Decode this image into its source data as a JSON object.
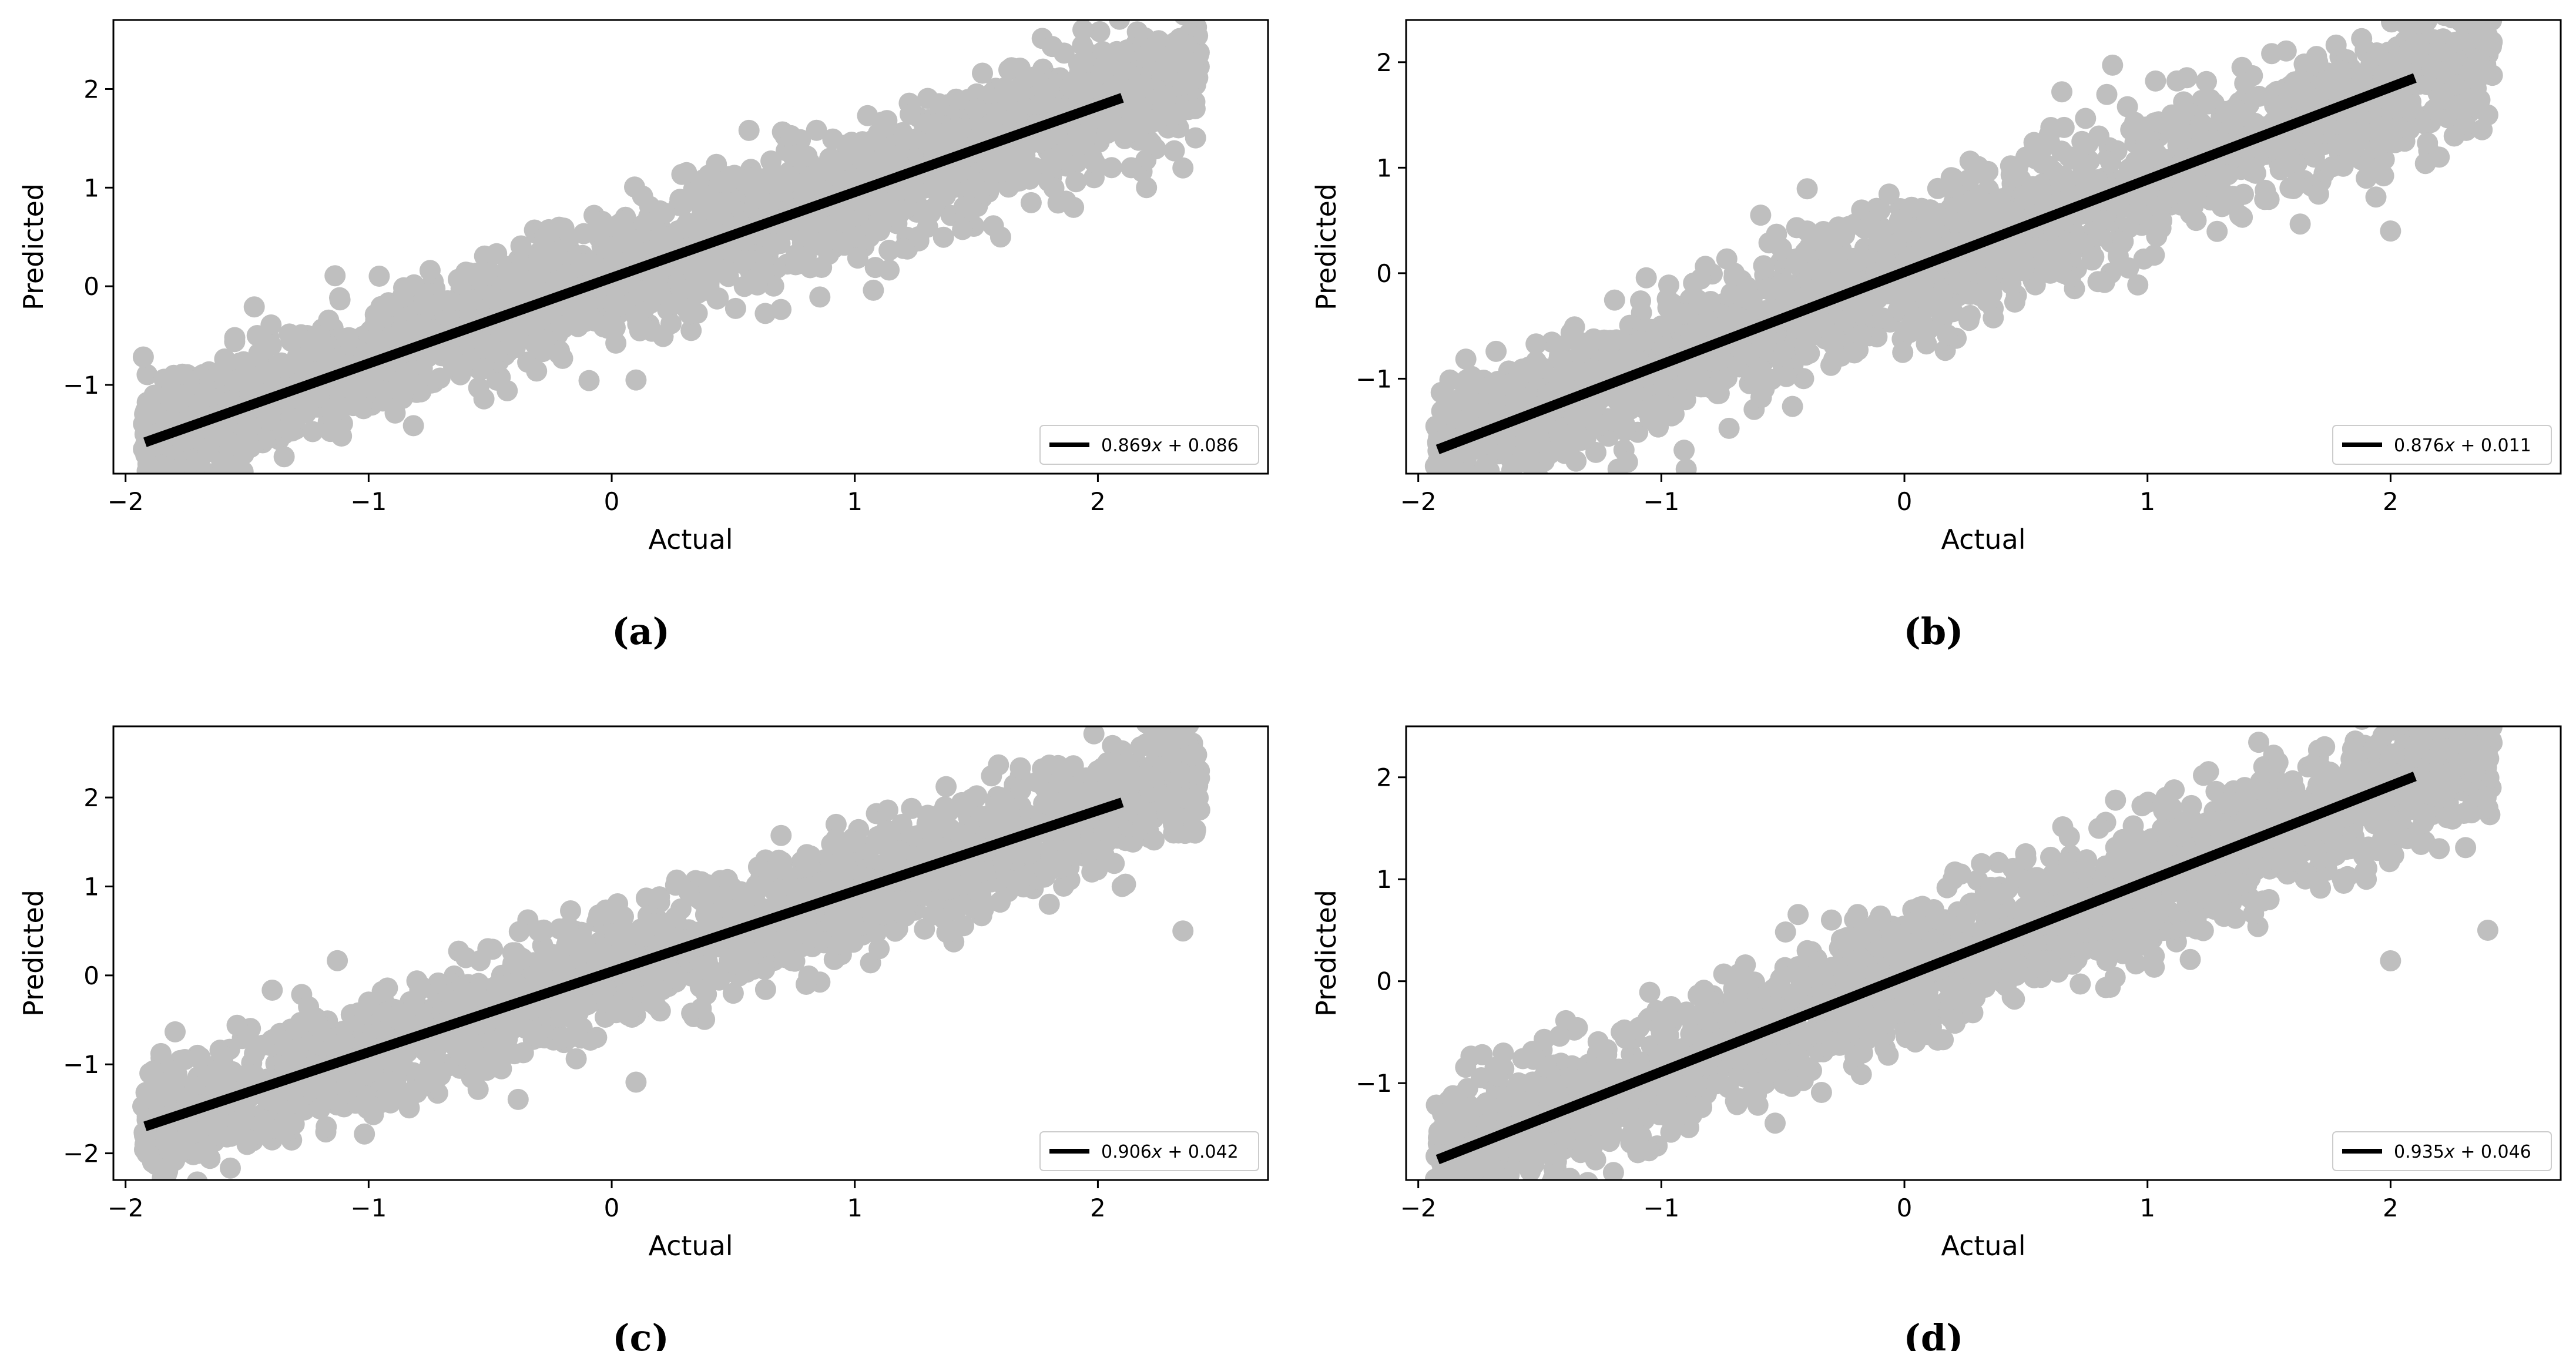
{
  "chart_data": [
    {
      "type": "scatter",
      "caption": "(a)",
      "xlabel": "Actual",
      "ylabel": "Predicted",
      "xlim": [
        -2.05,
        2.7
      ],
      "ylim": [
        -1.9,
        2.7
      ],
      "xticks": [
        {
          "v": -2,
          "label": "−2"
        },
        {
          "v": -1,
          "label": "−1"
        },
        {
          "v": 0,
          "label": "0"
        },
        {
          "v": 1,
          "label": "1"
        },
        {
          "v": 2,
          "label": "2"
        }
      ],
      "yticks": [
        {
          "v": -1,
          "label": "−1"
        },
        {
          "v": 0,
          "label": "0"
        },
        {
          "v": 1,
          "label": "1"
        },
        {
          "v": 2,
          "label": "2"
        }
      ],
      "scatter_color": "#bfbfbf",
      "fit_color": "#000000",
      "fit": {
        "slope": 0.869,
        "intercept": 0.086,
        "x_range": [
          -1.92,
          2.1
        ]
      },
      "legend": {
        "label_prefix": "0.869",
        "label_var": "x",
        "label_suffix": " + 0.086",
        "position": "lower-right"
      },
      "points": [
        [
          -1.92,
          -1.5
        ],
        [
          -1.9,
          -1.3
        ],
        [
          -1.85,
          -1.6
        ],
        [
          -1.7,
          -1.2
        ],
        [
          -1.6,
          -0.9
        ],
        [
          -1.5,
          -1.5
        ],
        [
          -1.4,
          -0.6
        ],
        [
          -1.3,
          -1.35
        ],
        [
          -1.2,
          -0.5
        ],
        [
          -1.0,
          -0.9
        ],
        [
          -0.9,
          -0.2
        ],
        [
          -0.8,
          -1.0
        ],
        [
          -0.6,
          0.1
        ],
        [
          -0.5,
          -0.6
        ],
        [
          -0.3,
          0.3
        ],
        [
          -0.2,
          -0.4
        ],
        [
          0,
          0.4
        ],
        [
          0.1,
          -0.3
        ],
        [
          0.1,
          -0.95
        ],
        [
          0.3,
          0.6
        ],
        [
          0.4,
          0.0
        ],
        [
          0.6,
          0.9
        ],
        [
          0.8,
          0.3
        ],
        [
          0.9,
          1.3
        ],
        [
          1.0,
          0.5
        ],
        [
          1.2,
          1.5
        ],
        [
          1.3,
          0.6
        ],
        [
          1.5,
          1.8
        ],
        [
          1.6,
          0.5
        ],
        [
          1.8,
          2.0
        ],
        [
          1.9,
          0.8
        ],
        [
          2.1,
          2.2
        ],
        [
          2.2,
          1.0
        ],
        [
          2.35,
          2.3
        ],
        [
          2.35,
          1.2
        ],
        [
          2.4,
          1.8
        ]
      ]
    },
    {
      "type": "scatter",
      "caption": "(b)",
      "xlabel": "Actual",
      "ylabel": "Predicted",
      "xlim": [
        -2.05,
        2.7
      ],
      "ylim": [
        -1.9,
        2.4
      ],
      "xticks": [
        {
          "v": -2,
          "label": "−2"
        },
        {
          "v": -1,
          "label": "−1"
        },
        {
          "v": 0,
          "label": "0"
        },
        {
          "v": 1,
          "label": "1"
        },
        {
          "v": 2,
          "label": "2"
        }
      ],
      "yticks": [
        {
          "v": -1,
          "label": "−1"
        },
        {
          "v": 0,
          "label": "0"
        },
        {
          "v": 1,
          "label": "1"
        },
        {
          "v": 2,
          "label": "2"
        }
      ],
      "scatter_color": "#bfbfbf",
      "fit_color": "#000000",
      "fit": {
        "slope": 0.876,
        "intercept": 0.011,
        "x_range": [
          -1.92,
          2.1
        ]
      },
      "legend": {
        "label_prefix": "0.876",
        "label_var": "x",
        "label_suffix": " + 0.011",
        "position": "lower-right"
      },
      "points": [
        [
          -1.92,
          -1.6
        ],
        [
          -1.9,
          -1.3
        ],
        [
          -1.8,
          -1.7
        ],
        [
          -1.6,
          -1.1
        ],
        [
          -1.5,
          -1.6
        ],
        [
          -1.3,
          -0.7
        ],
        [
          -1.2,
          -1.4
        ],
        [
          -1.0,
          -0.5
        ],
        [
          -0.9,
          -1.2
        ],
        [
          -0.7,
          0.0
        ],
        [
          -0.6,
          -0.9
        ],
        [
          -0.4,
          0.4
        ],
        [
          -0.4,
          0.8
        ],
        [
          -0.3,
          -0.6
        ],
        [
          -0.1,
          0.6
        ],
        [
          0,
          -0.3
        ],
        [
          0.2,
          0.9
        ],
        [
          0.3,
          -0.2
        ],
        [
          0.5,
          1.1
        ],
        [
          0.6,
          0.0
        ],
        [
          0.8,
          1.3
        ],
        [
          0.9,
          0.3
        ],
        [
          1.1,
          1.5
        ],
        [
          1.2,
          0.5
        ],
        [
          1.4,
          1.8
        ],
        [
          1.5,
          0.7
        ],
        [
          1.7,
          2.0
        ],
        [
          1.9,
          0.9
        ],
        [
          2.1,
          2.1
        ],
        [
          2.2,
          1.1
        ],
        [
          2.4,
          2.2
        ],
        [
          2.4,
          1.5
        ],
        [
          2.0,
          0.4
        ]
      ]
    },
    {
      "type": "scatter",
      "caption": "(c)",
      "xlabel": "Actual",
      "ylabel": "Predicted",
      "xlim": [
        -2.05,
        2.7
      ],
      "ylim": [
        -2.3,
        2.8
      ],
      "xticks": [
        {
          "v": -2,
          "label": "−2"
        },
        {
          "v": -1,
          "label": "−1"
        },
        {
          "v": 0,
          "label": "0"
        },
        {
          "v": 1,
          "label": "1"
        },
        {
          "v": 2,
          "label": "2"
        }
      ],
      "yticks": [
        {
          "v": -2,
          "label": "−2"
        },
        {
          "v": -1,
          "label": "−1"
        },
        {
          "v": 0,
          "label": "0"
        },
        {
          "v": 1,
          "label": "1"
        },
        {
          "v": 2,
          "label": "2"
        }
      ],
      "scatter_color": "#bfbfbf",
      "fit_color": "#000000",
      "fit": {
        "slope": 0.906,
        "intercept": 0.042,
        "x_range": [
          -1.92,
          2.1
        ]
      },
      "legend": {
        "label_prefix": "0.906",
        "label_var": "x",
        "label_suffix": " + 0.042",
        "position": "lower-right"
      },
      "points": [
        [
          -1.92,
          -1.9
        ],
        [
          -1.9,
          -1.1
        ],
        [
          -1.7,
          -2.0
        ],
        [
          -1.6,
          -0.9
        ],
        [
          -1.5,
          -1.9
        ],
        [
          -1.3,
          -0.6
        ],
        [
          -1.2,
          -1.5
        ],
        [
          -1.0,
          -0.3
        ],
        [
          -0.9,
          -1.2
        ],
        [
          -0.6,
          0.2
        ],
        [
          -0.5,
          -0.9
        ],
        [
          -0.3,
          0.5
        ],
        [
          -0.2,
          -0.7
        ],
        [
          0,
          0.7
        ],
        [
          0.1,
          -1.2
        ],
        [
          0.2,
          -0.4
        ],
        [
          0.4,
          1.0
        ],
        [
          0.5,
          -0.2
        ],
        [
          0.7,
          1.2
        ],
        [
          0.8,
          -0.1
        ],
        [
          1.0,
          1.5
        ],
        [
          1.1,
          0.3
        ],
        [
          1.3,
          1.8
        ],
        [
          1.4,
          0.5
        ],
        [
          1.6,
          2.0
        ],
        [
          1.8,
          0.8
        ],
        [
          2.0,
          2.3
        ],
        [
          2.1,
          1.0
        ],
        [
          2.3,
          2.4
        ],
        [
          2.4,
          1.6
        ],
        [
          2.35,
          0.5
        ]
      ]
    },
    {
      "type": "scatter",
      "caption": "(d)",
      "xlabel": "Actual",
      "ylabel": "Predicted",
      "xlim": [
        -2.05,
        2.7
      ],
      "ylim": [
        -1.95,
        2.5
      ],
      "xticks": [
        {
          "v": -2,
          "label": "−2"
        },
        {
          "v": -1,
          "label": "−1"
        },
        {
          "v": 0,
          "label": "0"
        },
        {
          "v": 1,
          "label": "1"
        },
        {
          "v": 2,
          "label": "2"
        }
      ],
      "yticks": [
        {
          "v": -1,
          "label": "−1"
        },
        {
          "v": 0,
          "label": "0"
        },
        {
          "v": 1,
          "label": "1"
        },
        {
          "v": 2,
          "label": "2"
        }
      ],
      "scatter_color": "#bfbfbf",
      "fit_color": "#000000",
      "fit": {
        "slope": 0.935,
        "intercept": 0.046,
        "x_range": [
          -1.92,
          2.1
        ]
      },
      "legend": {
        "label_prefix": "0.935",
        "label_var": "x",
        "label_suffix": " + 0.046",
        "position": "lower-right"
      },
      "points": [
        [
          -1.92,
          -1.7
        ],
        [
          -1.9,
          -1.3
        ],
        [
          -1.8,
          -1.75
        ],
        [
          -1.6,
          -1.1
        ],
        [
          -1.5,
          -1.7
        ],
        [
          -1.3,
          -0.9
        ],
        [
          -1.2,
          -1.5
        ],
        [
          -1.0,
          -0.5
        ],
        [
          -0.9,
          -1.3
        ],
        [
          -0.7,
          -0.2
        ],
        [
          -0.6,
          -1.0
        ],
        [
          -0.4,
          0.3
        ],
        [
          -0.3,
          -0.6
        ],
        [
          -0.3,
          0.6
        ],
        [
          -0.1,
          0.6
        ],
        [
          0,
          -0.3
        ],
        [
          0.2,
          1.0
        ],
        [
          0.3,
          -0.1
        ],
        [
          0.5,
          1.2
        ],
        [
          0.6,
          0.2
        ],
        [
          0.8,
          1.5
        ],
        [
          0.9,
          0.4
        ],
        [
          1.1,
          1.7
        ],
        [
          1.2,
          0.6
        ],
        [
          1.4,
          1.9
        ],
        [
          1.5,
          0.8
        ],
        [
          1.7,
          2.1
        ],
        [
          1.9,
          1.0
        ],
        [
          2.1,
          2.3
        ],
        [
          2.2,
          1.3
        ],
        [
          2.4,
          2.4
        ],
        [
          2.4,
          1.7
        ],
        [
          2.4,
          0.5
        ],
        [
          2.0,
          0.2
        ]
      ]
    }
  ]
}
